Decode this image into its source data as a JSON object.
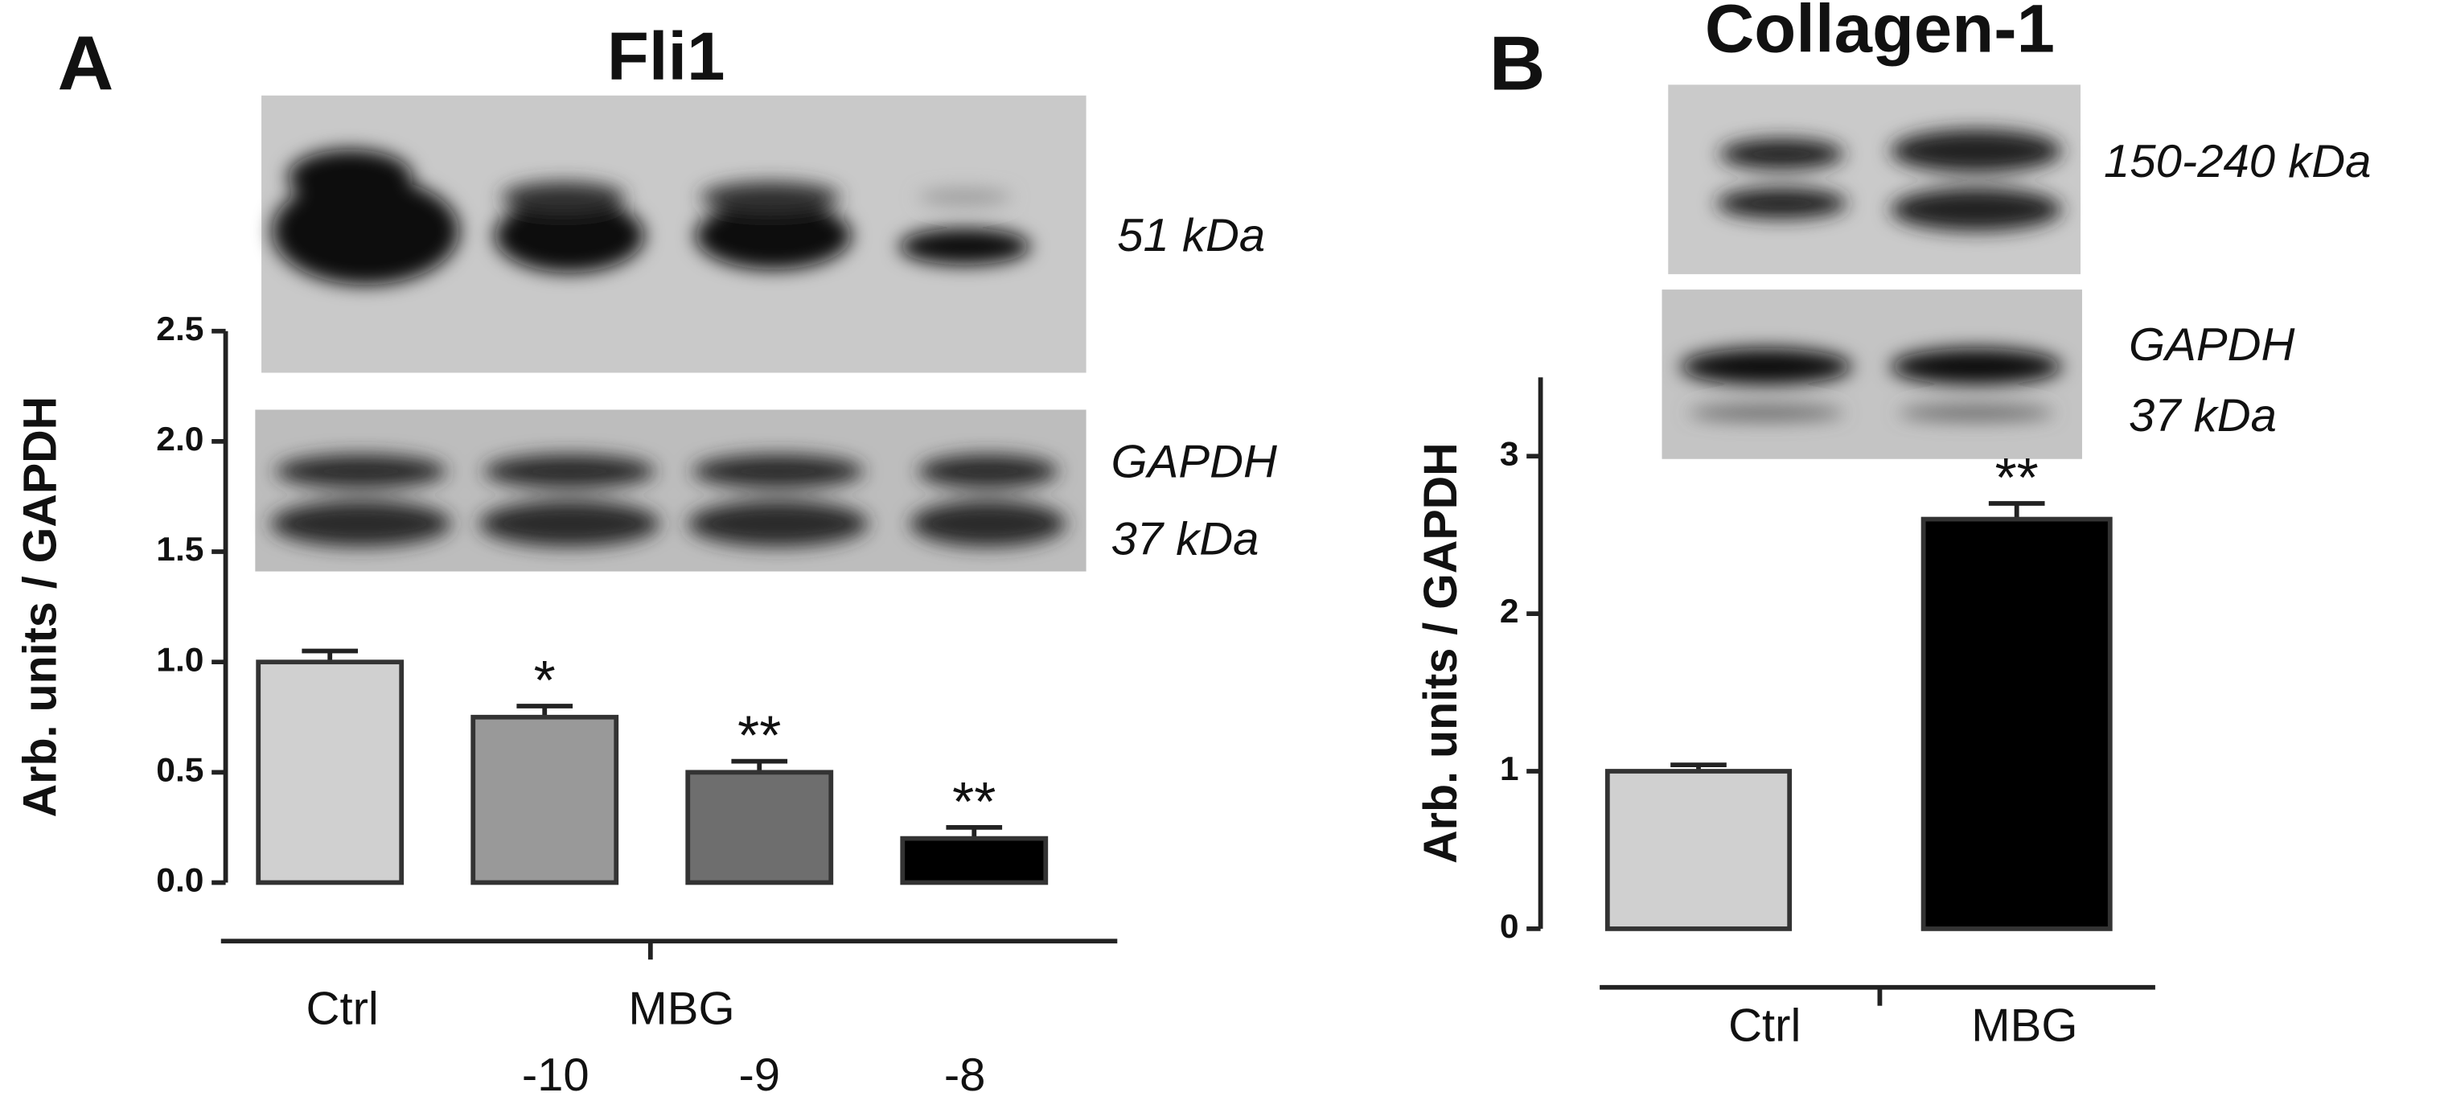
{
  "chart_data": [
    {
      "type": "bar",
      "panel_label": "A",
      "title": "Fli1",
      "y_label": "Arb. units / GAPDH",
      "blot_labels": [
        "51 kDa",
        "GAPDH",
        "37 kDa"
      ],
      "categories": [
        "Ctrl",
        "-10",
        "-9",
        "-8"
      ],
      "group_label": "MBG",
      "values": [
        1.0,
        0.75,
        0.5,
        0.2
      ],
      "errors": [
        0.05,
        0.05,
        0.05,
        0.05
      ],
      "significance": [
        null,
        "*",
        "**",
        "**"
      ],
      "colors": [
        "#d0d0d0",
        "#999999",
        "#6e6e6e",
        "#000000"
      ],
      "ylim": [
        0,
        2.5
      ],
      "yticks": [
        {
          "value": 0,
          "label": "0.0"
        },
        0.5,
        {
          "value": 1,
          "label": "1.0"
        },
        1.5,
        {
          "value": 2,
          "label": "2.0"
        },
        2.5
      ]
    },
    {
      "type": "bar",
      "panel_label": "B",
      "title": "Collagen-1",
      "y_label": "Arb. units / GAPDH",
      "blot_labels": [
        "150-240 kDa",
        "GAPDH",
        "37 kDa"
      ],
      "categories": [
        "Ctrl",
        "MBG"
      ],
      "values": [
        1.0,
        2.6
      ],
      "errors": [
        0.04,
        0.1
      ],
      "significance": [
        null,
        "**"
      ],
      "colors": [
        "#d0d0d0",
        "#000000"
      ],
      "ylim": [
        0,
        3.5
      ],
      "yticks": [
        0,
        1,
        2,
        3
      ]
    }
  ]
}
